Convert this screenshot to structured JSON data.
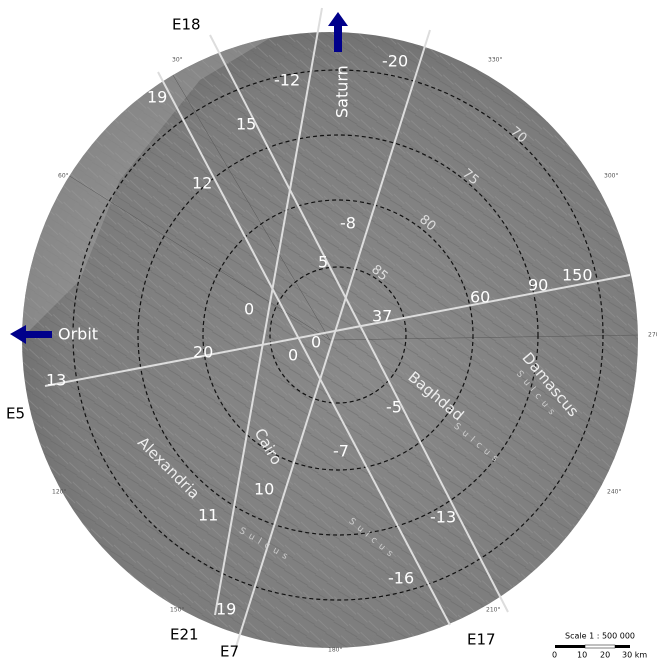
{
  "tracks": [
    "E18",
    "E5",
    "E21",
    "E7",
    "E17"
  ],
  "directions": {
    "saturn": "Saturn",
    "orbit": "Orbit"
  },
  "time_labels": [
    "-20",
    "-12",
    "19",
    "15",
    "12",
    "-8",
    "5",
    "0",
    "37",
    "60",
    "90",
    "150",
    "0",
    "0",
    "20",
    "13",
    "-5",
    "-7",
    "10",
    "11",
    "-13",
    "-16",
    "19"
  ],
  "latitude_labels": [
    "70",
    "75",
    "80",
    "85"
  ],
  "longitude_labels": [
    "30°",
    "60°",
    "120°",
    "150°",
    "180°",
    "210°",
    "240°",
    "270",
    "300°",
    "330°"
  ],
  "features": [
    {
      "name": "Baghdad",
      "type": "Sulcus"
    },
    {
      "name": "Cairo",
      "type": "Sulcus"
    },
    {
      "name": "Alexandria",
      "type": "Sulcus"
    },
    {
      "name": "Damascus",
      "type": "Sulcus"
    }
  ],
  "scale": {
    "title": "Scale 1 : 500 000",
    "ticks": [
      "0",
      "10",
      "20",
      "30 km"
    ]
  }
}
